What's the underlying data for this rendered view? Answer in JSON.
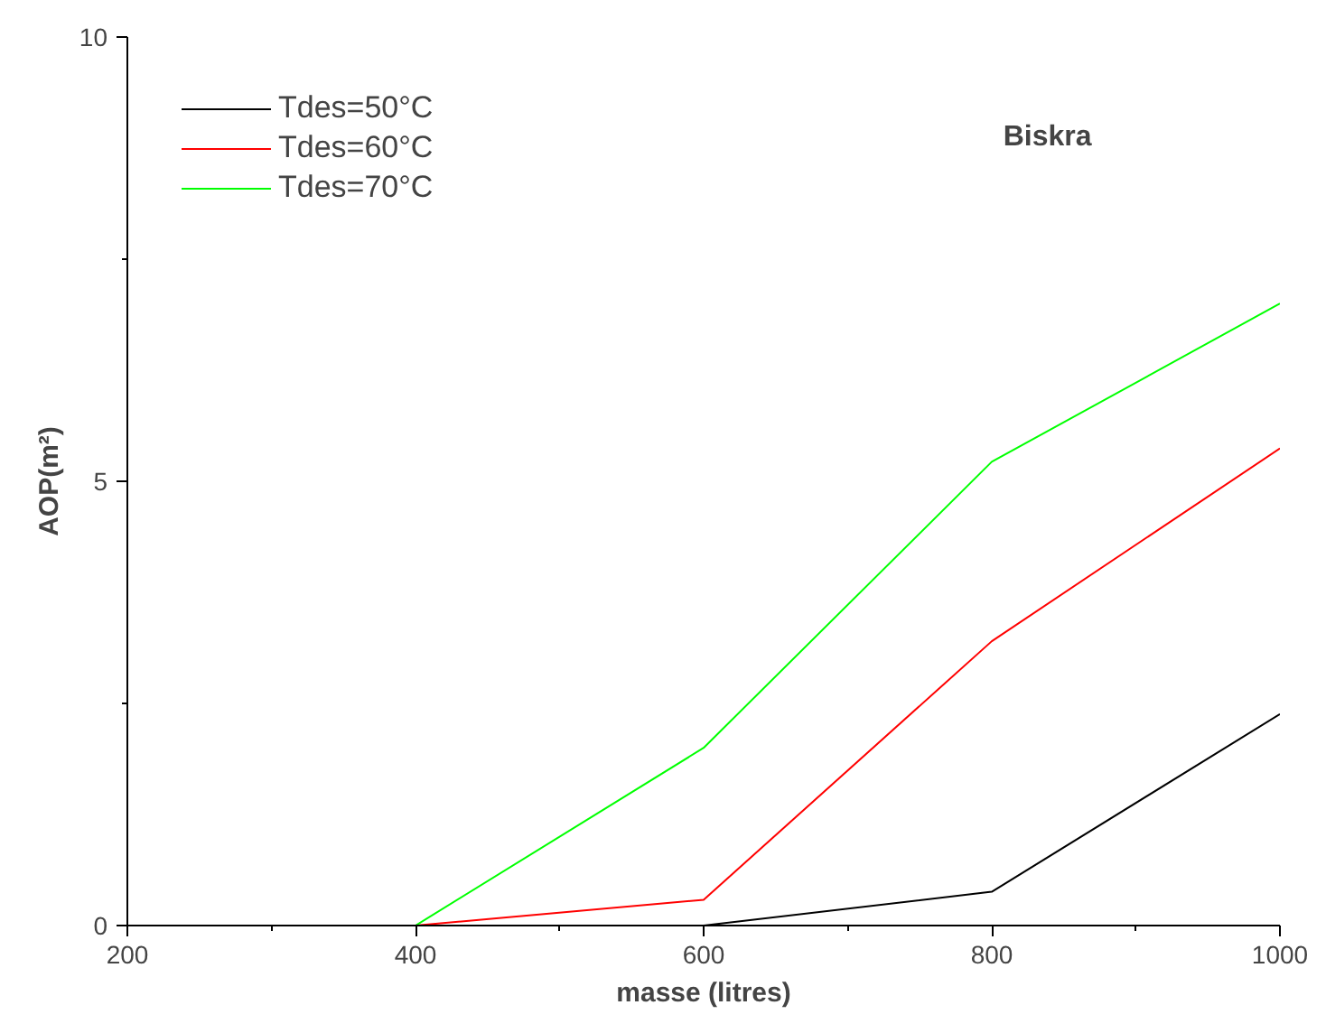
{
  "chart_data": {
    "type": "line",
    "xlabel": "masse (litres)",
    "ylabel": "AOP(m²)",
    "annotations": [
      "Biskra"
    ],
    "x": [
      200,
      400,
      600,
      800,
      1000
    ],
    "series": [
      {
        "name": "Tdes=50°C",
        "color": "#000000",
        "values": [
          0,
          0,
          0,
          0.38,
          2.38
        ]
      },
      {
        "name": "Tdes=60°C",
        "color": "#ff0000",
        "values": [
          0,
          0,
          0.29,
          3.2,
          5.37
        ]
      },
      {
        "name": "Tdes=70°C",
        "color": "#00ff00",
        "values": [
          0,
          0,
          2.0,
          5.22,
          7.0
        ]
      }
    ],
    "xlim": [
      200,
      1000
    ],
    "ylim": [
      0,
      10
    ],
    "xticks": [
      200,
      400,
      600,
      800,
      1000
    ],
    "yticks": [
      0,
      5,
      10
    ],
    "grid": false,
    "legend": "top left",
    "marker": "none",
    "line_style": "solid"
  }
}
